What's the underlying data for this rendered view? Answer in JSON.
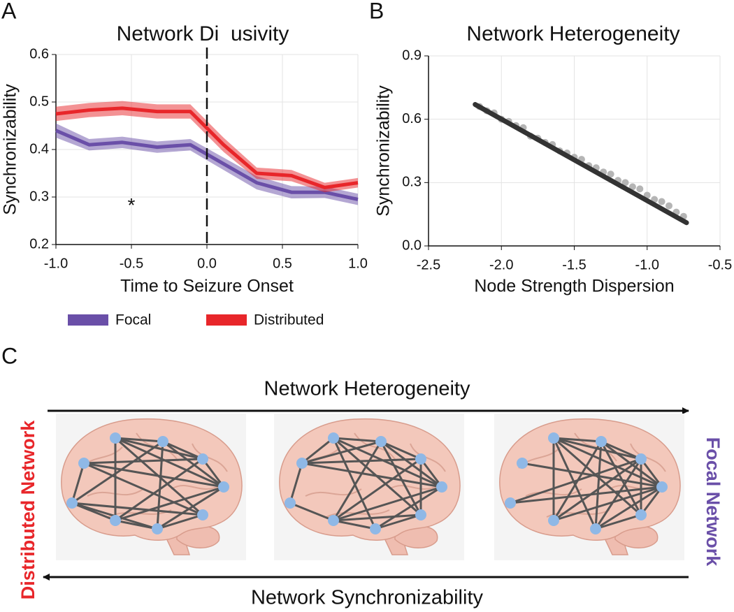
{
  "chart_data": [
    {
      "type": "line",
      "panel": "A",
      "title": "Network Di  usivity",
      "x_label": "Time to Seizure Onset",
      "y_label": "Synchronizability",
      "x": [
        -1.0,
        -0.78,
        -0.56,
        -0.33,
        -0.11,
        0.11,
        0.33,
        0.56,
        0.78,
        1.0
      ],
      "series": [
        {
          "name": "Focal",
          "color": "#6a4fa8",
          "values": [
            0.44,
            0.41,
            0.415,
            0.405,
            0.41,
            0.37,
            0.33,
            0.31,
            0.31,
            0.295
          ],
          "error": [
            0.015,
            0.012,
            0.012,
            0.012,
            0.012,
            0.013,
            0.014,
            0.013,
            0.012,
            0.012
          ]
        },
        {
          "name": "Distributed",
          "color": "#e8262a",
          "values": [
            0.475,
            0.483,
            0.487,
            0.48,
            0.48,
            0.41,
            0.35,
            0.345,
            0.32,
            0.33
          ],
          "error": [
            0.015,
            0.015,
            0.015,
            0.015,
            0.015,
            0.015,
            0.012,
            0.012,
            0.01,
            0.01
          ]
        }
      ],
      "xlim": [
        -1.0,
        1.0
      ],
      "ylim": [
        0.2,
        0.6
      ],
      "xticks": [
        {
          "value": -1.0,
          "label": "-1.0"
        },
        -0.5,
        {
          "value": 0,
          "label": "0.0"
        },
        0.5,
        {
          "value": 1.0,
          "label": "1.0"
        }
      ],
      "yticks": [
        0.2,
        0.3,
        0.4,
        0.5,
        0.6
      ],
      "grid": true,
      "vline": 0,
      "annotations": [
        {
          "text": "*",
          "x": -0.5,
          "y": 0.28
        }
      ]
    },
    {
      "type": "scatter",
      "panel": "B",
      "title": "Network Heterogeneity",
      "x_label": "Node Strength Dispersion",
      "y_label": "Synchronizability",
      "color": "#b5b5b5",
      "x": [
        -2.15,
        -2.1,
        -2.05,
        -2.0,
        -1.95,
        -1.9,
        -1.85,
        -1.8,
        -1.75,
        -1.7,
        -1.65,
        -1.6,
        -1.55,
        -1.5,
        -1.45,
        -1.4,
        -1.35,
        -1.3,
        -1.25,
        -1.2,
        -1.15,
        -1.1,
        -1.05,
        -1.0,
        -0.95,
        -0.9,
        -0.85,
        -0.8,
        -0.75
      ],
      "y": [
        0.66,
        0.64,
        0.63,
        0.6,
        0.59,
        0.57,
        0.56,
        0.52,
        0.51,
        0.49,
        0.48,
        0.45,
        0.44,
        0.42,
        0.41,
        0.38,
        0.37,
        0.35,
        0.34,
        0.31,
        0.3,
        0.28,
        0.27,
        0.24,
        0.22,
        0.21,
        0.19,
        0.16,
        0.14
      ],
      "trend_line": {
        "x": [
          -2.18,
          -0.73
        ],
        "y": [
          0.67,
          0.11
        ],
        "color": "#333333"
      },
      "xlim": [
        -2.5,
        -0.5
      ],
      "ylim": [
        0,
        0.9
      ],
      "xticks": [
        -2.5,
        {
          "value": -2.0,
          "label": "-2.0"
        },
        -1.5,
        {
          "value": -1.0,
          "label": "-1.0"
        },
        -0.5
      ],
      "yticks": [
        {
          "value": 0,
          "label": "0.0"
        },
        0.3,
        0.6,
        0.9
      ],
      "grid": true
    }
  ],
  "diagram": {
    "panel": "C",
    "top_arrow_label": "Network Heterogeneity",
    "bottom_arrow_label": "Network Synchronizability",
    "left_label": "Distributed Network",
    "right_label": "Focal Network"
  }
}
